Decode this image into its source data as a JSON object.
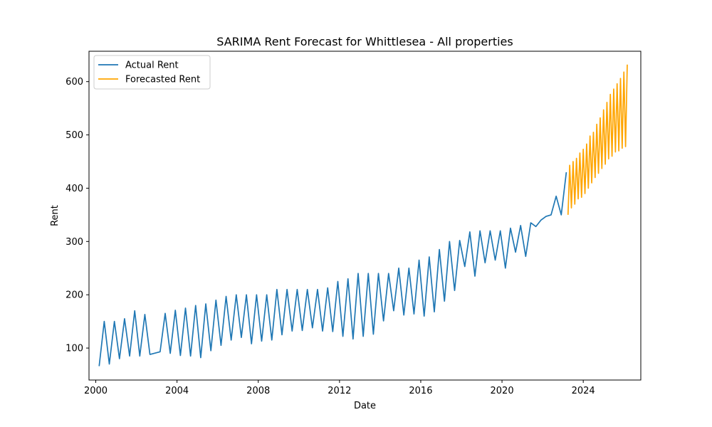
{
  "chart_data": {
    "type": "line",
    "title": "SARIMA Rent Forecast for Whittlesea - All properties",
    "xlabel": "Date",
    "ylabel": "Rent",
    "x_ticks": [
      "2000",
      "2004",
      "2008",
      "2012",
      "2016",
      "2020",
      "2024"
    ],
    "y_ticks": [
      100,
      200,
      300,
      400,
      500,
      600
    ],
    "xlim": [
      "1999-09-01",
      "2026-11-01"
    ],
    "ylim": [
      40,
      657
    ],
    "grid": false,
    "legend_position": "top-left",
    "series": [
      {
        "name": "Actual Rent",
        "color": "#1f77b4",
        "x": [
          "2000-03",
          "2000-06",
          "2000-09",
          "2000-12",
          "2001-03",
          "2001-06",
          "2001-09",
          "2001-12",
          "2002-03",
          "2002-06",
          "2002-09",
          "2003-03",
          "2003-06",
          "2003-09",
          "2003-12",
          "2004-03",
          "2004-06",
          "2004-09",
          "2004-12",
          "2005-03",
          "2005-06",
          "2005-09",
          "2005-12",
          "2006-03",
          "2006-06",
          "2006-09",
          "2006-12",
          "2007-03",
          "2007-06",
          "2007-09",
          "2007-12",
          "2008-03",
          "2008-06",
          "2008-09",
          "2008-12",
          "2009-03",
          "2009-06",
          "2009-09",
          "2009-12",
          "2010-03",
          "2010-06",
          "2010-09",
          "2010-12",
          "2011-03",
          "2011-06",
          "2011-09",
          "2011-12",
          "2012-03",
          "2012-06",
          "2012-09",
          "2012-12",
          "2013-03",
          "2013-06",
          "2013-09",
          "2013-12",
          "2014-03",
          "2014-06",
          "2014-09",
          "2014-12",
          "2015-03",
          "2015-06",
          "2015-09",
          "2015-12",
          "2016-03",
          "2016-06",
          "2016-09",
          "2016-12",
          "2017-03",
          "2017-06",
          "2017-09",
          "2017-12",
          "2018-03",
          "2018-06",
          "2018-09",
          "2018-12",
          "2019-03",
          "2019-06",
          "2019-09",
          "2019-12",
          "2020-03",
          "2020-06",
          "2020-09",
          "2020-12",
          "2021-03",
          "2021-06",
          "2021-09",
          "2021-12",
          "2022-03",
          "2022-06",
          "2022-09",
          "2022-12",
          "2023-03"
        ],
        "values": [
          66,
          150,
          70,
          150,
          80,
          155,
          85,
          170,
          85,
          163,
          88,
          93,
          165,
          90,
          171,
          86,
          175,
          85,
          180,
          82,
          183,
          95,
          190,
          105,
          197,
          115,
          200,
          120,
          200,
          108,
          200,
          113,
          200,
          115,
          210,
          125,
          210,
          132,
          210,
          133,
          210,
          138,
          210,
          132,
          213,
          131,
          225,
          122,
          230,
          117,
          240,
          122,
          240,
          126,
          240,
          151,
          240,
          170,
          250,
          162,
          250,
          164,
          265,
          160,
          271,
          168,
          285,
          188,
          300,
          208,
          302,
          253,
          318,
          235,
          320,
          260,
          320,
          265,
          320,
          250,
          325,
          280,
          330,
          272,
          335,
          328,
          340,
          347,
          350,
          385,
          350,
          430
        ]
      },
      {
        "name": "Forecasted Rent",
        "color": "#ffa500",
        "x": [
          "2023-04",
          "2023-05",
          "2023-06",
          "2023-07",
          "2023-08",
          "2023-09",
          "2023-10",
          "2023-11",
          "2023-12",
          "2024-01",
          "2024-02",
          "2024-03",
          "2024-04",
          "2024-05",
          "2024-06",
          "2024-07",
          "2024-08",
          "2024-09",
          "2024-10",
          "2024-11",
          "2024-12",
          "2025-01",
          "2025-02",
          "2025-03",
          "2025-04",
          "2025-05",
          "2025-06",
          "2025-07",
          "2025-08",
          "2025-09",
          "2025-10",
          "2025-11",
          "2025-12",
          "2026-01",
          "2026-02",
          "2026-03"
        ],
        "values": [
          350,
          443,
          363,
          450,
          370,
          456,
          380,
          466,
          383,
          473,
          390,
          483,
          400,
          498,
          410,
          505,
          420,
          520,
          428,
          532,
          437,
          547,
          445,
          561,
          455,
          576,
          460,
          586,
          468,
          596,
          470,
          606,
          475,
          618,
          478,
          632
        ]
      }
    ]
  }
}
